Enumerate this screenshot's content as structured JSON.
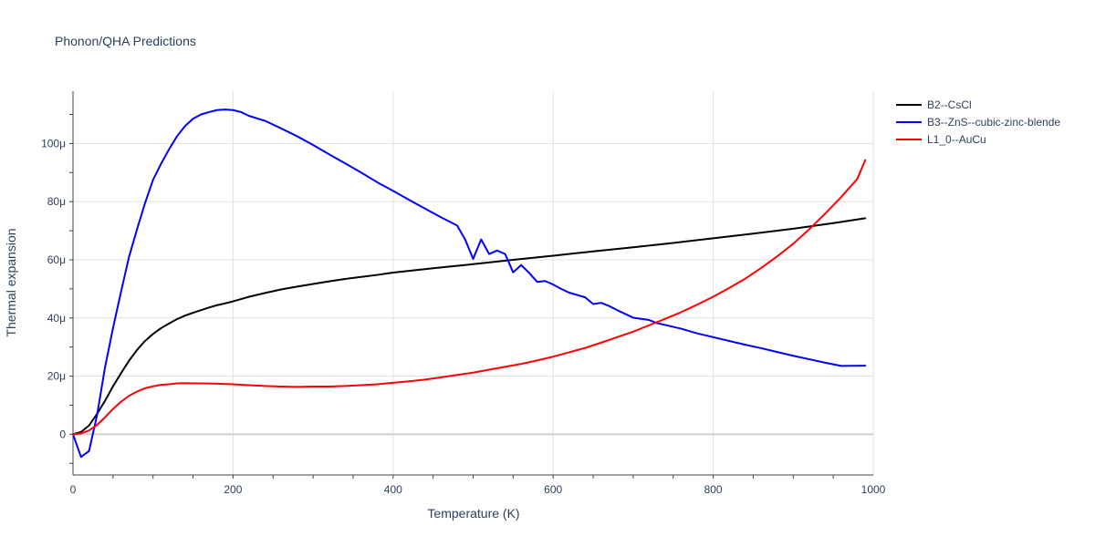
{
  "chart_data": {
    "type": "line",
    "title": "Phonon/QHA Predictions",
    "xlabel": "Temperature (K)",
    "ylabel": "Thermal expansion",
    "xlim": [
      0,
      1000
    ],
    "ylim": [
      -1.4e-05,
      0.000118
    ],
    "x_ticks": [
      0,
      200,
      400,
      600,
      800,
      1000
    ],
    "x_tick_labels": [
      "0",
      "200",
      "400",
      "600",
      "800",
      "1000"
    ],
    "y_ticks": [
      0,
      2e-05,
      4e-05,
      6e-05,
      8e-05,
      0.0001
    ],
    "y_tick_labels": [
      "0",
      "20μ",
      "40μ",
      "60μ",
      "80μ",
      "100μ"
    ],
    "grid": true,
    "legend_position": "top-right",
    "series": [
      {
        "name": "B2--CsCl",
        "color": "#000000",
        "x": [
          0,
          10,
          20,
          30,
          40,
          50,
          60,
          70,
          80,
          90,
          100,
          110,
          120,
          130,
          140,
          150,
          160,
          170,
          180,
          190,
          200,
          210,
          220,
          240,
          260,
          280,
          300,
          320,
          340,
          360,
          380,
          400,
          450,
          500,
          550,
          600,
          650,
          700,
          750,
          800,
          850,
          900,
          950,
          990
        ],
        "y": [
          0,
          8e-07,
          3e-06,
          7e-06,
          1.15e-05,
          1.65e-05,
          2.1e-05,
          2.53e-05,
          2.9e-05,
          3.21e-05,
          3.45e-05,
          3.65e-05,
          3.81e-05,
          3.96e-05,
          4.08e-05,
          4.18e-05,
          4.27e-05,
          4.36e-05,
          4.44e-05,
          4.5e-05,
          4.57e-05,
          4.65e-05,
          4.73e-05,
          4.86e-05,
          4.98e-05,
          5.08e-05,
          5.17e-05,
          5.26e-05,
          5.34e-05,
          5.41e-05,
          5.48e-05,
          5.56e-05,
          5.71e-05,
          5.85e-05,
          6e-05,
          6.14e-05,
          6.29e-05,
          6.43e-05,
          6.58e-05,
          6.74e-05,
          6.9e-05,
          7.07e-05,
          7.26e-05,
          7.43e-05
        ]
      },
      {
        "name": "B3--ZnS--cubic-zinc-blende",
        "color": "#0000ff",
        "x": [
          0,
          10,
          20,
          30,
          40,
          50,
          60,
          70,
          80,
          90,
          100,
          110,
          120,
          130,
          140,
          150,
          160,
          170,
          180,
          190,
          200,
          210,
          220,
          240,
          260,
          280,
          300,
          320,
          340,
          360,
          380,
          400,
          420,
          440,
          460,
          470,
          480,
          490,
          500,
          510,
          520,
          530,
          540,
          550,
          560,
          570,
          580,
          590,
          600,
          610,
          620,
          630,
          640,
          650,
          660,
          670,
          680,
          690,
          700,
          710,
          720,
          730,
          740,
          760,
          780,
          800,
          820,
          840,
          860,
          880,
          900,
          920,
          940,
          960,
          990
        ],
        "y": [
          0,
          -7.8e-06,
          -5.8e-06,
          6.5e-06,
          2.3e-05,
          3.65e-05,
          4.9e-05,
          6.1e-05,
          7.05e-05,
          7.95e-05,
          8.75e-05,
          9.3e-05,
          9.8e-05,
          0.0001025,
          0.000106,
          0.0001085,
          0.00011,
          0.0001108,
          0.0001115,
          0.0001117,
          0.0001115,
          0.0001108,
          0.0001095,
          0.0001078,
          0.0001052,
          0.0001025,
          9.95e-05,
          9.63e-05,
          9.32e-05,
          9e-05,
          8.67e-05,
          8.37e-05,
          8.06e-05,
          7.76e-05,
          7.46e-05,
          7.32e-05,
          7.18e-05,
          6.7e-05,
          6.03e-05,
          6.7e-05,
          6.2e-05,
          6.32e-05,
          6.2e-05,
          5.57e-05,
          5.82e-05,
          5.55e-05,
          5.24e-05,
          5.27e-05,
          5.15e-05,
          5e-05,
          4.87e-05,
          4.79e-05,
          4.71e-05,
          4.48e-05,
          4.52e-05,
          4.41e-05,
          4.27e-05,
          4.14e-05,
          4.01e-05,
          3.97e-05,
          3.93e-05,
          3.82e-05,
          3.76e-05,
          3.63e-05,
          3.47e-05,
          3.34e-05,
          3.21e-05,
          3.08e-05,
          2.96e-05,
          2.83e-05,
          2.7e-05,
          2.58e-05,
          2.46e-05,
          2.35e-05,
          2.36e-05
        ]
      },
      {
        "name": "L1_0--AuCu",
        "color": "#ff0000",
        "x": [
          0,
          10,
          20,
          30,
          40,
          50,
          60,
          70,
          80,
          90,
          100,
          110,
          120,
          130,
          140,
          150,
          160,
          180,
          200,
          220,
          240,
          260,
          280,
          300,
          320,
          340,
          360,
          380,
          400,
          420,
          440,
          460,
          480,
          500,
          520,
          540,
          560,
          580,
          600,
          620,
          640,
          660,
          680,
          700,
          720,
          740,
          760,
          780,
          800,
          820,
          840,
          860,
          880,
          900,
          920,
          940,
          960,
          980,
          990
        ],
        "y": [
          0,
          3e-07,
          1.3e-06,
          3.2e-06,
          5.8e-06,
          8.7e-06,
          1.12e-05,
          1.32e-05,
          1.47e-05,
          1.58e-05,
          1.65e-05,
          1.7e-05,
          1.72e-05,
          1.75e-05,
          1.76e-05,
          1.75e-05,
          1.75e-05,
          1.74e-05,
          1.72e-05,
          1.69e-05,
          1.66e-05,
          1.64e-05,
          1.63e-05,
          1.64e-05,
          1.64e-05,
          1.66e-05,
          1.69e-05,
          1.72e-05,
          1.77e-05,
          1.82e-05,
          1.88e-05,
          1.96e-05,
          2.04e-05,
          2.12e-05,
          2.22e-05,
          2.32e-05,
          2.42e-05,
          2.54e-05,
          2.67e-05,
          2.82e-05,
          2.97e-05,
          3.15e-05,
          3.34e-05,
          3.53e-05,
          3.75e-05,
          3.97e-05,
          4.2e-05,
          4.46e-05,
          4.73e-05,
          5.03e-05,
          5.35e-05,
          5.72e-05,
          6.12e-05,
          6.55e-05,
          7.05e-05,
          7.59e-05,
          8.16e-05,
          8.78e-05,
          9.43e-05
        ]
      }
    ]
  }
}
